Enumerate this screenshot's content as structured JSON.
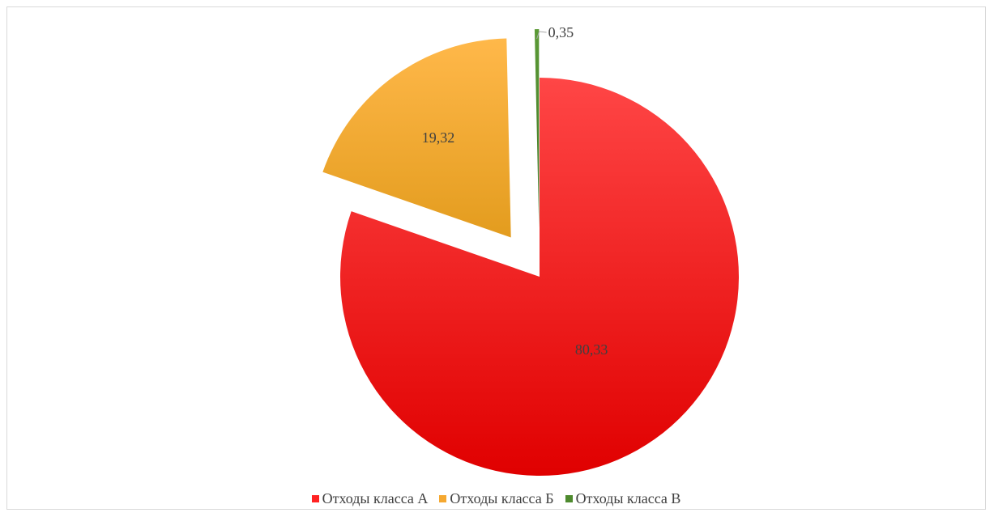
{
  "chart_data": {
    "type": "pie",
    "title": "",
    "categories": [
      "Отходы класса А",
      "Отходы класса Б",
      "Отходы класса В"
    ],
    "values": [
      80.33,
      19.32,
      0.35
    ],
    "labels": [
      "80,33",
      "19,32",
      "0,35"
    ],
    "colors": [
      "#ff2222",
      "#f5a830",
      "#4e8a2e"
    ],
    "exploded": [
      false,
      true,
      true
    ],
    "start_angle_deg": 0,
    "direction": "clockwise",
    "legend_position": "bottom"
  }
}
